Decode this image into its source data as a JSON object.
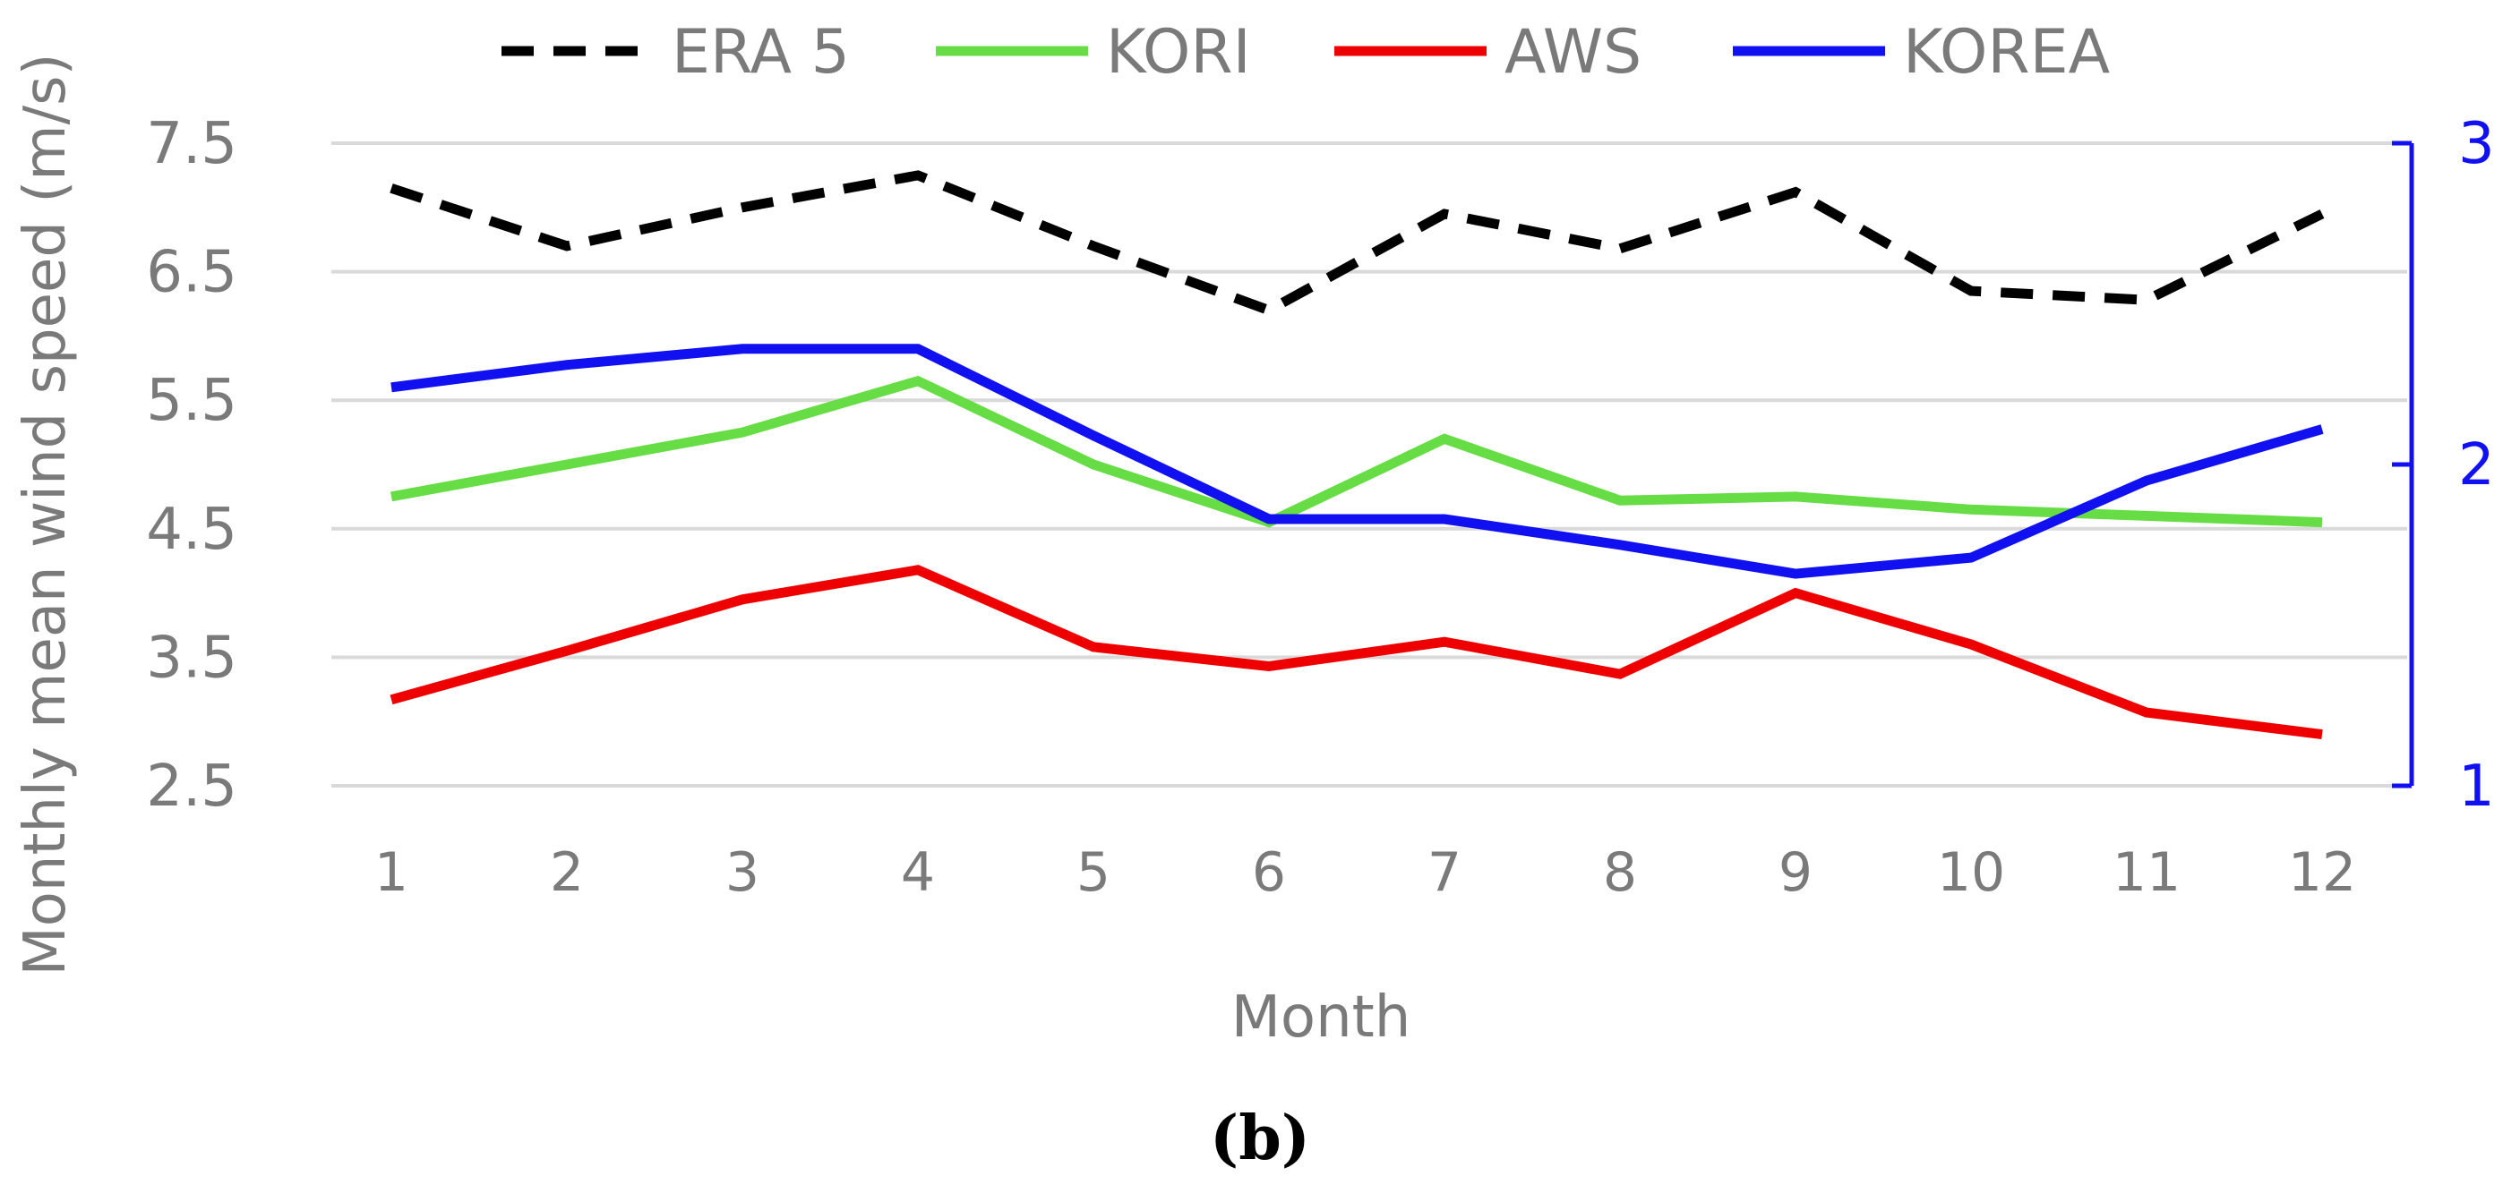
{
  "chart_data": {
    "type": "line",
    "title": "",
    "xlabel": "Month",
    "ylabel": "Monthly mean wind speed (m/s)",
    "categories": [
      "1",
      "2",
      "3",
      "4",
      "5",
      "6",
      "7",
      "8",
      "9",
      "10",
      "11",
      "12"
    ],
    "ylim": [
      2.5,
      7.5
    ],
    "yticks": [
      "2.5",
      "3.5",
      "4.5",
      "5.5",
      "6.5",
      "7.5"
    ],
    "y2lim": [
      1,
      3
    ],
    "y2ticks": [
      "1",
      "2",
      "3"
    ],
    "grid": true,
    "legend_position": "top",
    "panel_label": "(b)",
    "series": [
      {
        "name": "ERA 5",
        "axis": "left",
        "color": "#000000",
        "dashed": true,
        "values": [
          7.15,
          6.7,
          7.0,
          7.25,
          6.7,
          6.2,
          6.95,
          6.68,
          7.12,
          6.35,
          6.28,
          6.95
        ]
      },
      {
        "name": "KORI",
        "axis": "left",
        "color": "#66dd44",
        "dashed": false,
        "values": [
          4.75,
          5.0,
          5.25,
          5.65,
          5.0,
          4.55,
          5.2,
          4.72,
          4.75,
          4.65,
          4.6,
          4.55
        ]
      },
      {
        "name": "AWS",
        "axis": "left",
        "color": "#ee0000",
        "dashed": false,
        "values": [
          3.17,
          3.55,
          3.95,
          4.18,
          3.58,
          3.43,
          3.62,
          3.37,
          4.0,
          3.6,
          3.07,
          2.9
        ]
      },
      {
        "name": "KOREA",
        "axis": "right",
        "color": "#1010f0",
        "dashed": false,
        "values": [
          2.24,
          2.31,
          2.36,
          2.36,
          2.09,
          1.83,
          1.83,
          1.75,
          1.66,
          1.71,
          1.95,
          2.11
        ]
      }
    ]
  }
}
